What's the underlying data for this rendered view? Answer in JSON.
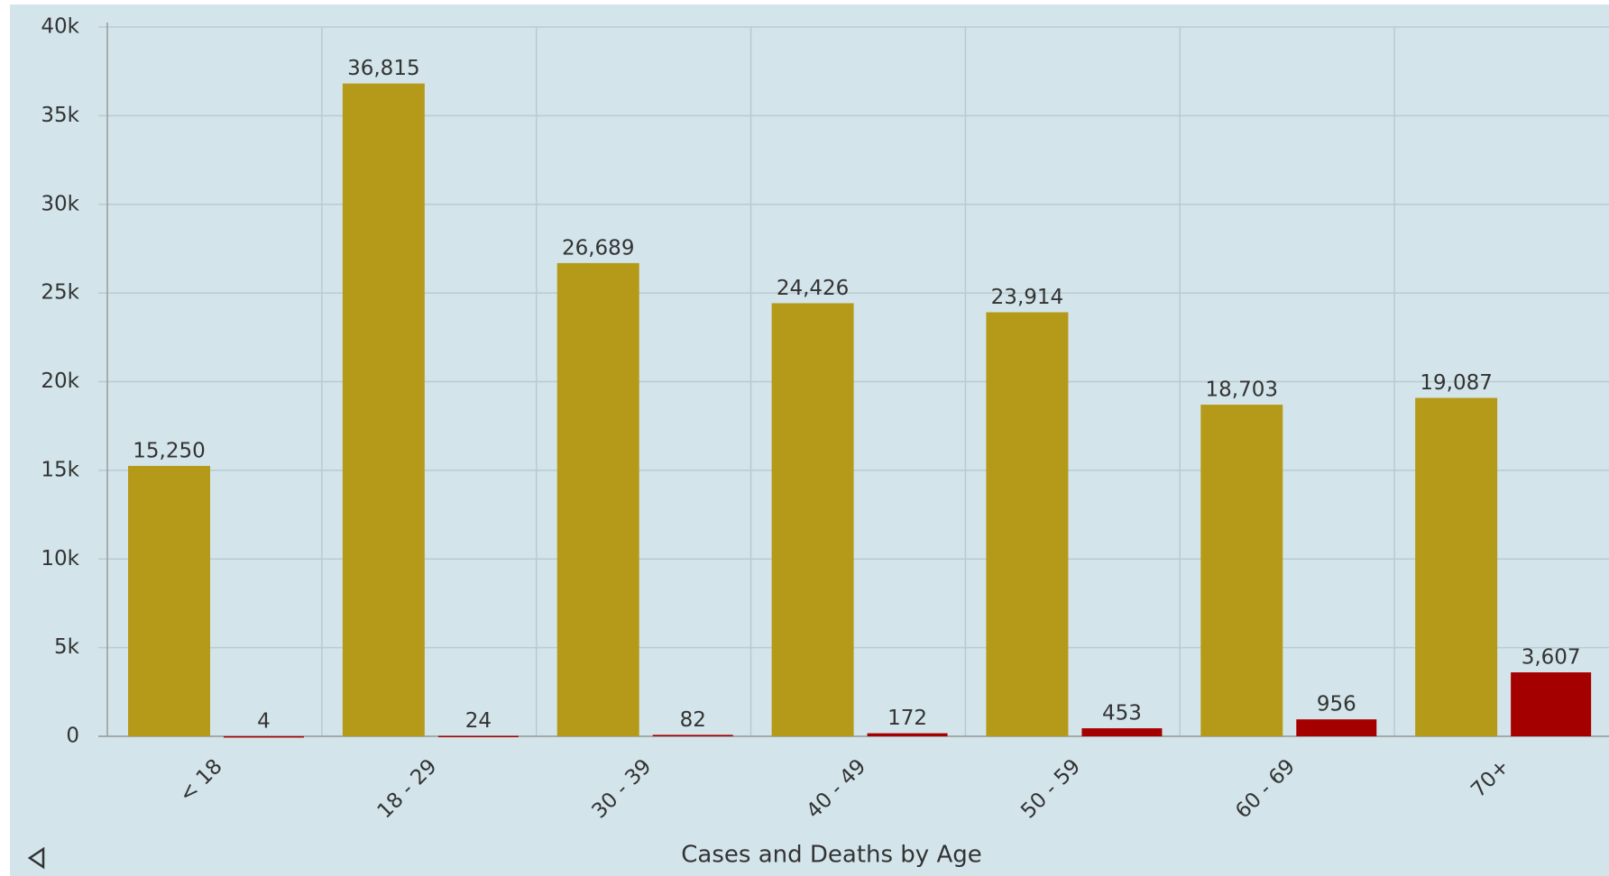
{
  "chart_data": {
    "type": "bar",
    "title": "Cases and Deaths by Age",
    "categories": [
      "< 18",
      "18 - 29",
      "30 - 39",
      "40 - 49",
      "50 - 59",
      "60 - 69",
      "70+"
    ],
    "series": [
      {
        "color": "#b59a1a",
        "values": [
          15250,
          36815,
          26689,
          24426,
          23914,
          18703,
          19087
        ],
        "value_labels": [
          "15,250",
          "36,815",
          "26,689",
          "24,426",
          "23,914",
          "18,703",
          "19,087"
        ]
      },
      {
        "color": "#a50000",
        "values": [
          4,
          24,
          82,
          172,
          453,
          956,
          3607
        ],
        "value_labels": [
          "4",
          "24",
          "82",
          "172",
          "453",
          "956",
          "3,607"
        ]
      }
    ],
    "ylim": [
      0,
      40000
    ],
    "yticks": [
      0,
      {
        "value": 5000,
        "label": "5k"
      },
      {
        "value": 10000,
        "label": "10k"
      },
      {
        "value": 15000,
        "label": "15k"
      },
      {
        "value": 20000,
        "label": "20k"
      },
      {
        "value": 25000,
        "label": "25k"
      },
      {
        "value": 30000,
        "label": "30k"
      },
      {
        "value": 35000,
        "label": "35k"
      },
      {
        "value": 40000,
        "label": "40k"
      }
    ],
    "grid": true
  }
}
